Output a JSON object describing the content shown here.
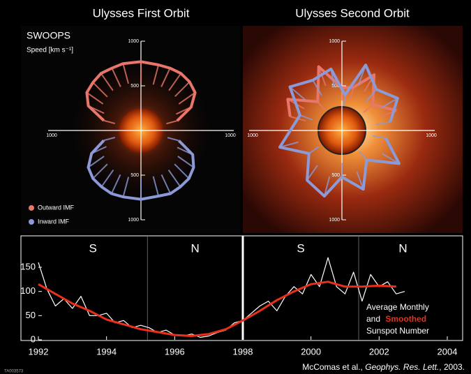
{
  "chart_data": [
    {
      "type": "polar",
      "title": "Ulysses First Orbit",
      "label": "SWOOPS",
      "axis_label": "Speed [km s⁻¹]",
      "rlim": [
        0,
        1000
      ],
      "rticks": [
        500,
        1000
      ],
      "series": [
        {
          "name": "Outward IMF",
          "color": "#e8766a",
          "angles": [
            15,
            25,
            35,
            45,
            55,
            65,
            75,
            90,
            105,
            115,
            125,
            135,
            145,
            155,
            165
          ],
          "values": [
            420,
            620,
            740,
            770,
            780,
            770,
            760,
            770,
            775,
            770,
            780,
            760,
            740,
            650,
            430
          ]
        },
        {
          "name": "Inward IMF",
          "color": "#8c9ad8",
          "angles": [
            195,
            205,
            215,
            225,
            235,
            245,
            255,
            270,
            285,
            295,
            305,
            315,
            325,
            335,
            345
          ],
          "values": [
            430,
            610,
            720,
            760,
            770,
            780,
            770,
            770,
            760,
            780,
            770,
            760,
            720,
            640,
            440
          ]
        }
      ]
    },
    {
      "type": "polar",
      "title": "Ulysses Second Orbit",
      "rlim": [
        0,
        1000
      ],
      "rticks": [
        500,
        1000
      ],
      "series": [
        {
          "color": "#e8766a",
          "angles": [
            20,
            40,
            60,
            75,
            90,
            110,
            130,
            150,
            165
          ],
          "values": [
            650,
            450,
            720,
            500,
            480,
            760,
            420,
            700,
            600
          ]
        },
        {
          "color": "#8c9ad8",
          "angles": [
            10,
            30,
            50,
            70,
            85,
            100,
            120,
            140,
            160,
            195,
            215,
            235,
            255,
            270,
            290,
            310,
            330,
            350
          ],
          "values": [
            550,
            720,
            600,
            780,
            400,
            700,
            650,
            760,
            500,
            720,
            450,
            680,
            760,
            520,
            700,
            430,
            740,
            500
          ]
        }
      ]
    },
    {
      "type": "line",
      "xlim": [
        1992,
        2004
      ],
      "xticks": [
        1992,
        1994,
        1996,
        1998,
        2000,
        2002,
        2004
      ],
      "ylim": [
        0,
        215
      ],
      "yticks": [
        0,
        50,
        100,
        150
      ],
      "dividers": [
        1995.2,
        1998,
        2001.4
      ],
      "hemisphere_labels": [
        "S",
        "N",
        "S",
        "N"
      ],
      "legend_connector": "and",
      "legend_suffix": "Sunspot Number",
      "series": [
        {
          "name": "Average Monthly",
          "color": "#ffffff",
          "x": [
            1992.0,
            1992.25,
            1992.5,
            1992.75,
            1993.0,
            1993.25,
            1993.5,
            1993.75,
            1994.0,
            1994.25,
            1994.5,
            1994.75,
            1995.0,
            1995.25,
            1995.5,
            1995.75,
            1996.0,
            1996.25,
            1996.5,
            1996.75,
            1997.0,
            1997.25,
            1997.5,
            1997.75,
            1998.0,
            1998.25,
            1998.5,
            1998.75,
            1999.0,
            1999.25,
            1999.5,
            1999.75,
            2000.0,
            2000.25,
            2000.5,
            2000.75,
            2001.0,
            2001.25,
            2001.5,
            2001.75,
            2002.0,
            2002.25,
            2002.5,
            2002.75
          ],
          "values": [
            160,
            105,
            70,
            85,
            65,
            90,
            50,
            50,
            55,
            35,
            40,
            25,
            30,
            25,
            15,
            20,
            10,
            8,
            12,
            5,
            8,
            15,
            20,
            35,
            40,
            55,
            70,
            80,
            60,
            90,
            110,
            95,
            135,
            110,
            170,
            110,
            95,
            140,
            80,
            135,
            110,
            120,
            95,
            100
          ]
        },
        {
          "name": "Smoothed",
          "color": "#e8301c",
          "x": [
            1992.0,
            1992.5,
            1993.0,
            1993.5,
            1994.0,
            1994.5,
            1995.0,
            1995.5,
            1996.0,
            1996.5,
            1997.0,
            1997.5,
            1998.0,
            1998.5,
            1999.0,
            1999.5,
            2000.0,
            2000.5,
            2001.0,
            2001.5,
            2002.0,
            2002.5
          ],
          "values": [
            115,
            95,
            75,
            60,
            42,
            32,
            22,
            16,
            10,
            8,
            12,
            22,
            40,
            60,
            82,
            100,
            115,
            120,
            110,
            110,
            112,
            110
          ]
        }
      ]
    }
  ],
  "caption": {
    "authors": "McComas et al., ",
    "journal": "Geophys. Res. Lett.",
    "year": ", 2003."
  },
  "figure_id": "TA003573"
}
